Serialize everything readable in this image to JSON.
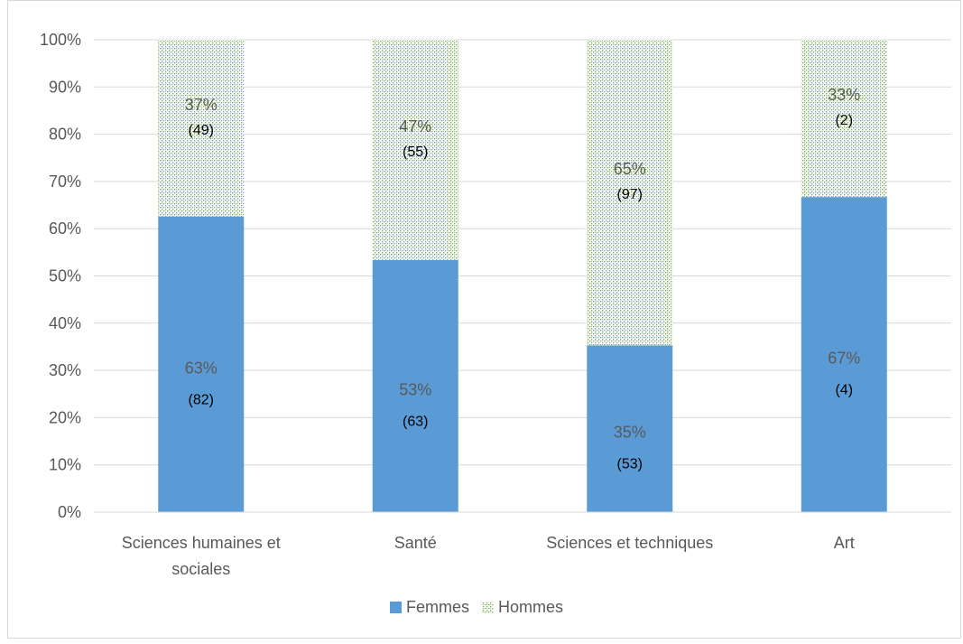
{
  "chart_data": {
    "type": "bar",
    "stacked": true,
    "title": "",
    "xlabel": "",
    "ylabel": "",
    "ylim": [
      0,
      100
    ],
    "yticks": [
      "0%",
      "10%",
      "20%",
      "30%",
      "40%",
      "50%",
      "60%",
      "70%",
      "80%",
      "90%",
      "100%"
    ],
    "grid": true,
    "legend_position": "bottom",
    "categories": [
      "Sciences humaines et sociales",
      "Santé",
      "Sciences et techniques",
      "Art"
    ],
    "category_lines": [
      [
        "Sciences humaines et",
        "sociales"
      ],
      [
        "Santé"
      ],
      [
        "Sciences et techniques"
      ],
      [
        "Art"
      ]
    ],
    "series": [
      {
        "name": "Femmes",
        "color": "#5b9bd5",
        "fill": "solid",
        "values": [
          62.6,
          53.4,
          35.3,
          66.7
        ],
        "labels": [
          "63%",
          "53%",
          "35%",
          "67%"
        ],
        "counts": [
          "(82)",
          "(63)",
          "(53)",
          "(4)"
        ]
      },
      {
        "name": "Hommes",
        "color": "#70ad47",
        "fill": "dotted-pattern",
        "values": [
          37.4,
          46.6,
          64.7,
          33.3
        ],
        "labels": [
          "37%",
          "47%",
          "65%",
          "33%"
        ],
        "counts": [
          "(49)",
          "(55)",
          "(97)",
          "(2)"
        ]
      }
    ]
  }
}
